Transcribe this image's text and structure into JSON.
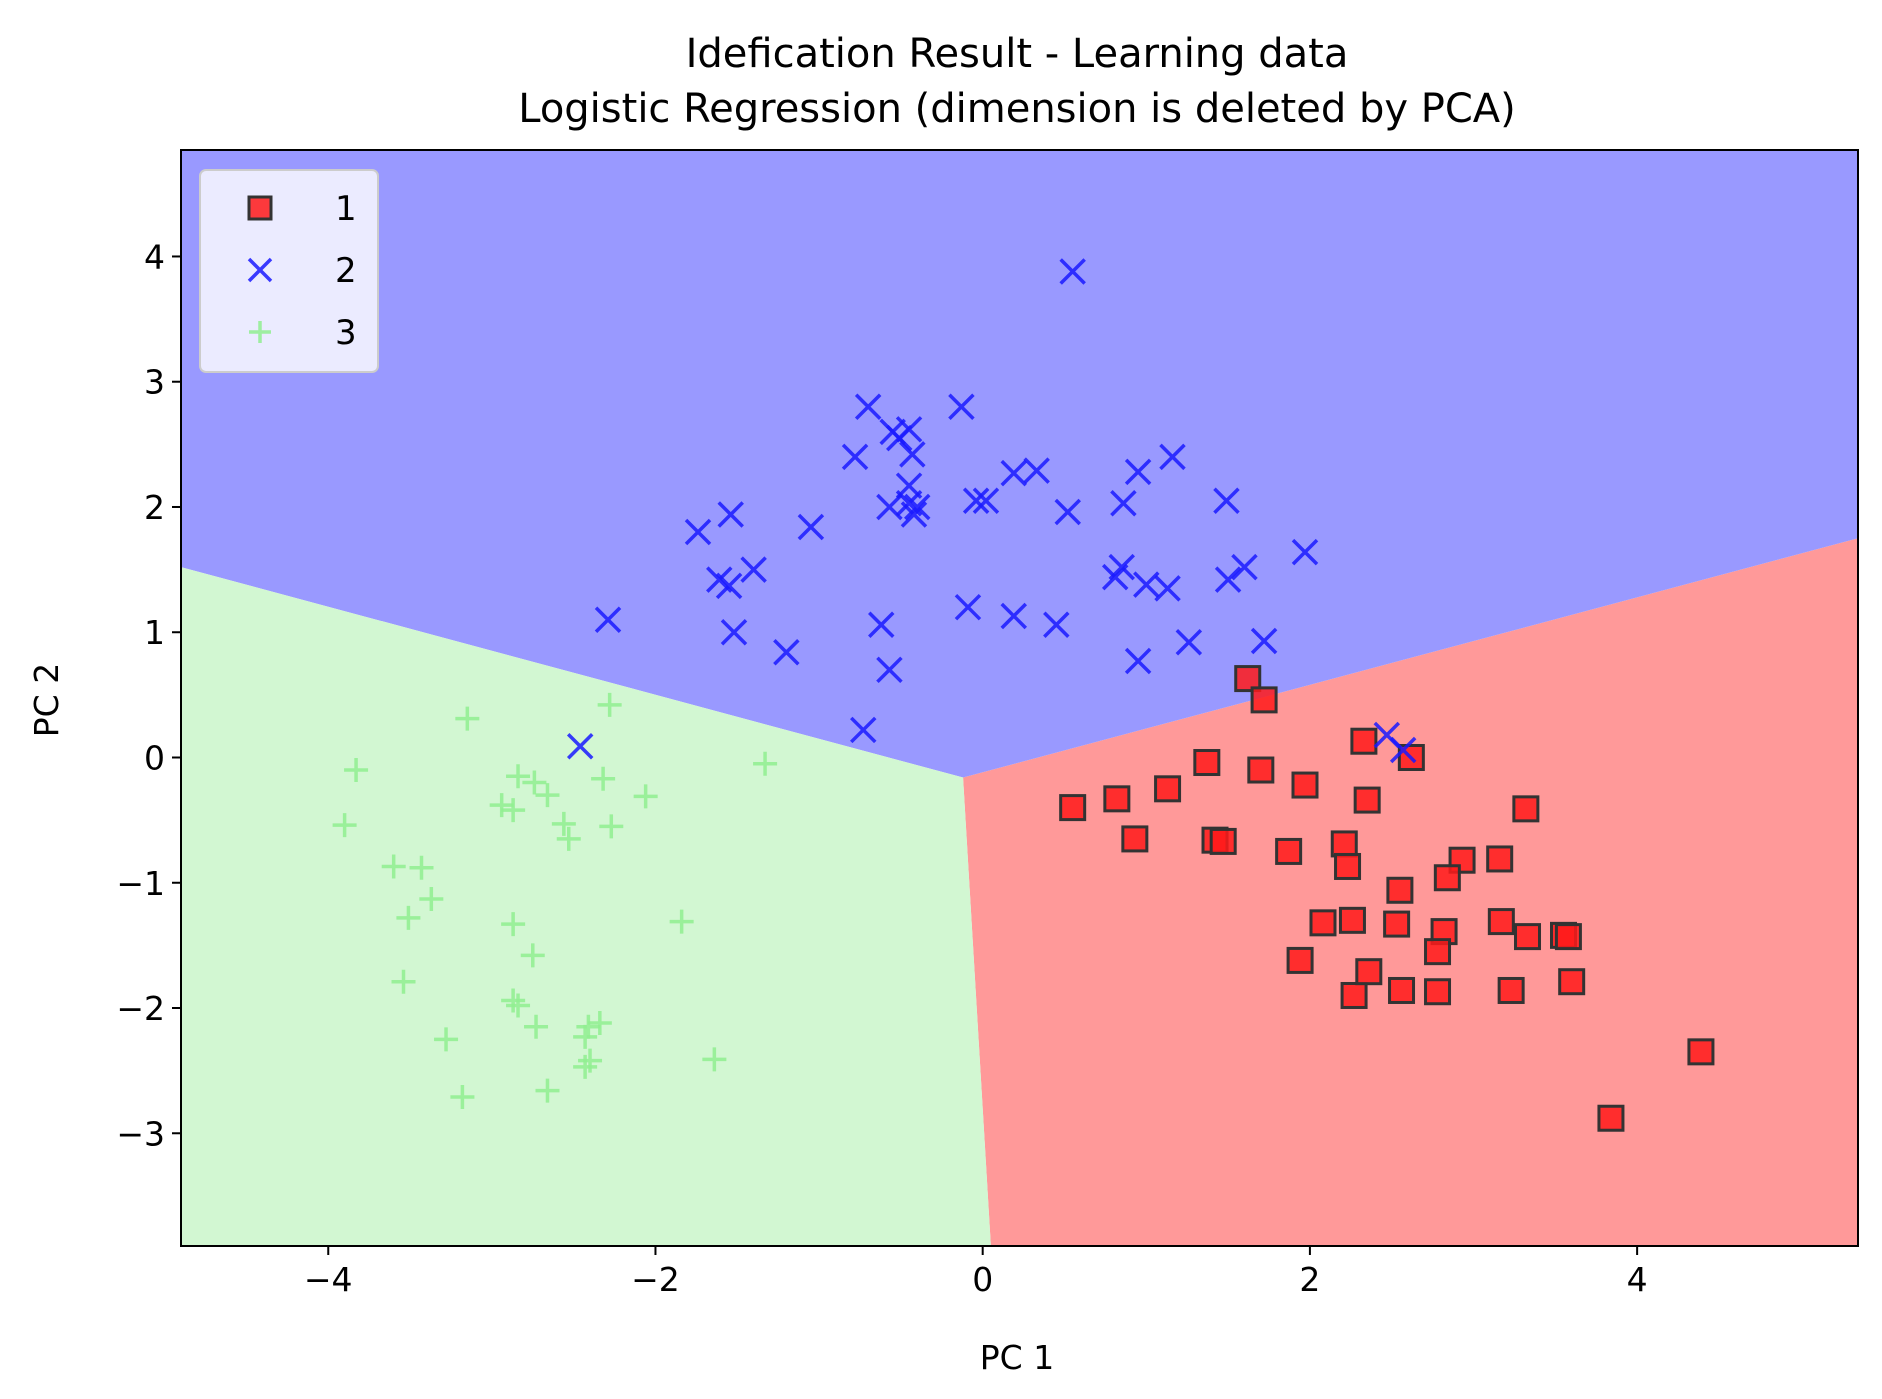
{
  "chart_data": {
    "type": "scatter",
    "title": "Idefication Result - Learning data",
    "subtitle": "Logistic Regression (dimension is deleted by PCA)",
    "xlabel": "PC 1",
    "ylabel": "PC 2",
    "xlim": [
      -4.9,
      5.35
    ],
    "ylim": [
      -3.9,
      4.85
    ],
    "xticks": [
      -4,
      -2,
      0,
      2,
      4
    ],
    "yticks": [
      -3,
      -2,
      -1,
      0,
      1,
      2,
      3,
      4
    ],
    "grid": false,
    "legend_position": "top-left",
    "regions": [
      {
        "class": "1",
        "color": "#ff9999",
        "vertices": [
          [
            -0.12,
            -0.16
          ],
          [
            5.35,
            1.75
          ],
          [
            5.35,
            -3.9
          ],
          [
            0.05,
            -3.9
          ]
        ]
      },
      {
        "class": "2",
        "color": "#9999ff",
        "vertices": [
          [
            -4.9,
            1.52
          ],
          [
            -0.12,
            -0.16
          ],
          [
            5.35,
            1.75
          ],
          [
            5.35,
            4.85
          ],
          [
            -4.9,
            4.85
          ]
        ]
      },
      {
        "class": "3",
        "color": "#d2f7d2",
        "vertices": [
          [
            -4.9,
            1.52
          ],
          [
            -0.12,
            -0.16
          ],
          [
            0.05,
            -3.9
          ],
          [
            -4.9,
            -3.9
          ]
        ]
      }
    ],
    "series": [
      {
        "name": "1",
        "marker": "square",
        "color": "#ff1a1a",
        "edge_color": "#333333",
        "points": [
          [
            1.62,
            0.63
          ],
          [
            1.72,
            0.46
          ],
          [
            2.33,
            0.13
          ],
          [
            2.62,
            0.0
          ],
          [
            1.37,
            -0.04
          ],
          [
            1.7,
            -0.1
          ],
          [
            0.55,
            -0.4
          ],
          [
            0.82,
            -0.33
          ],
          [
            1.13,
            -0.25
          ],
          [
            1.97,
            -0.22
          ],
          [
            2.35,
            -0.34
          ],
          [
            3.32,
            -0.41
          ],
          [
            0.93,
            -0.65
          ],
          [
            1.42,
            -0.66
          ],
          [
            1.47,
            -0.67
          ],
          [
            1.87,
            -0.75
          ],
          [
            2.21,
            -0.69
          ],
          [
            2.23,
            -0.87
          ],
          [
            2.93,
            -0.82
          ],
          [
            3.16,
            -0.81
          ],
          [
            2.84,
            -0.96
          ],
          [
            2.55,
            -1.06
          ],
          [
            2.08,
            -1.32
          ],
          [
            2.26,
            -1.3
          ],
          [
            2.53,
            -1.33
          ],
          [
            2.82,
            -1.39
          ],
          [
            3.17,
            -1.31
          ],
          [
            3.33,
            -1.43
          ],
          [
            3.55,
            -1.42
          ],
          [
            3.58,
            -1.43
          ],
          [
            1.94,
            -1.62
          ],
          [
            2.78,
            -1.55
          ],
          [
            2.27,
            -1.9
          ],
          [
            2.36,
            -1.71
          ],
          [
            2.56,
            -1.86
          ],
          [
            2.78,
            -1.87
          ],
          [
            3.23,
            -1.86
          ],
          [
            3.6,
            -1.79
          ],
          [
            4.39,
            -2.35
          ],
          [
            3.84,
            -2.88
          ]
        ]
      },
      {
        "name": "2",
        "marker": "x",
        "color": "#1a1aff",
        "points": [
          [
            0.55,
            3.88
          ],
          [
            -0.7,
            2.8
          ],
          [
            -0.13,
            2.8
          ],
          [
            -0.55,
            2.6
          ],
          [
            -0.45,
            2.62
          ],
          [
            -0.51,
            2.55
          ],
          [
            -0.43,
            2.42
          ],
          [
            -0.78,
            2.4
          ],
          [
            1.16,
            2.4
          ],
          [
            0.19,
            2.27
          ],
          [
            0.33,
            2.29
          ],
          [
            0.95,
            2.28
          ],
          [
            -0.45,
            2.17
          ],
          [
            -0.45,
            2.03
          ],
          [
            -0.4,
            2.0
          ],
          [
            -0.57,
            2.0
          ],
          [
            -0.42,
            1.94
          ],
          [
            -0.04,
            2.05
          ],
          [
            0.02,
            2.05
          ],
          [
            0.52,
            1.96
          ],
          [
            0.86,
            2.03
          ],
          [
            1.49,
            2.05
          ],
          [
            -1.54,
            1.94
          ],
          [
            -1.05,
            1.84
          ],
          [
            -1.74,
            1.8
          ],
          [
            -1.61,
            1.42
          ],
          [
            -1.55,
            1.37
          ],
          [
            -1.4,
            1.5
          ],
          [
            0.85,
            1.52
          ],
          [
            0.81,
            1.44
          ],
          [
            1.0,
            1.38
          ],
          [
            1.13,
            1.35
          ],
          [
            1.5,
            1.42
          ],
          [
            1.6,
            1.52
          ],
          [
            1.97,
            1.64
          ],
          [
            -0.09,
            1.2
          ],
          [
            0.19,
            1.13
          ],
          [
            0.45,
            1.06
          ],
          [
            -2.29,
            1.1
          ],
          [
            -1.52,
            1.0
          ],
          [
            -1.2,
            0.84
          ],
          [
            -0.62,
            1.06
          ],
          [
            -0.57,
            0.7
          ],
          [
            1.26,
            0.92
          ],
          [
            1.72,
            0.93
          ],
          [
            0.95,
            0.77
          ],
          [
            -0.73,
            0.22
          ],
          [
            -2.46,
            0.09
          ],
          [
            2.47,
            0.18
          ],
          [
            2.57,
            0.06
          ]
        ]
      },
      {
        "name": "3",
        "marker": "plus",
        "color": "#90ee90",
        "points": [
          [
            -3.15,
            0.31
          ],
          [
            -2.28,
            0.42
          ],
          [
            -1.33,
            -0.05
          ],
          [
            -3.83,
            -0.1
          ],
          [
            -2.84,
            -0.15
          ],
          [
            -2.32,
            -0.17
          ],
          [
            -2.74,
            -0.2
          ],
          [
            -2.66,
            -0.3
          ],
          [
            -2.06,
            -0.31
          ],
          [
            -2.94,
            -0.38
          ],
          [
            -2.87,
            -0.42
          ],
          [
            -3.9,
            -0.54
          ],
          [
            -2.56,
            -0.53
          ],
          [
            -2.53,
            -0.65
          ],
          [
            -2.27,
            -0.55
          ],
          [
            -3.6,
            -0.87
          ],
          [
            -3.43,
            -0.88
          ],
          [
            -3.37,
            -1.13
          ],
          [
            -3.51,
            -1.28
          ],
          [
            -2.87,
            -1.33
          ],
          [
            -1.84,
            -1.31
          ],
          [
            -2.75,
            -1.58
          ],
          [
            -3.54,
            -1.79
          ],
          [
            -2.87,
            -1.94
          ],
          [
            -2.84,
            -1.98
          ],
          [
            -2.73,
            -2.15
          ],
          [
            -2.34,
            -2.12
          ],
          [
            -2.41,
            -2.15
          ],
          [
            -2.43,
            -2.23
          ],
          [
            -3.28,
            -2.25
          ],
          [
            -2.4,
            -2.42
          ],
          [
            -2.43,
            -2.47
          ],
          [
            -1.64,
            -2.41
          ],
          [
            -2.66,
            -2.66
          ],
          [
            -3.18,
            -2.71
          ]
        ]
      }
    ]
  }
}
